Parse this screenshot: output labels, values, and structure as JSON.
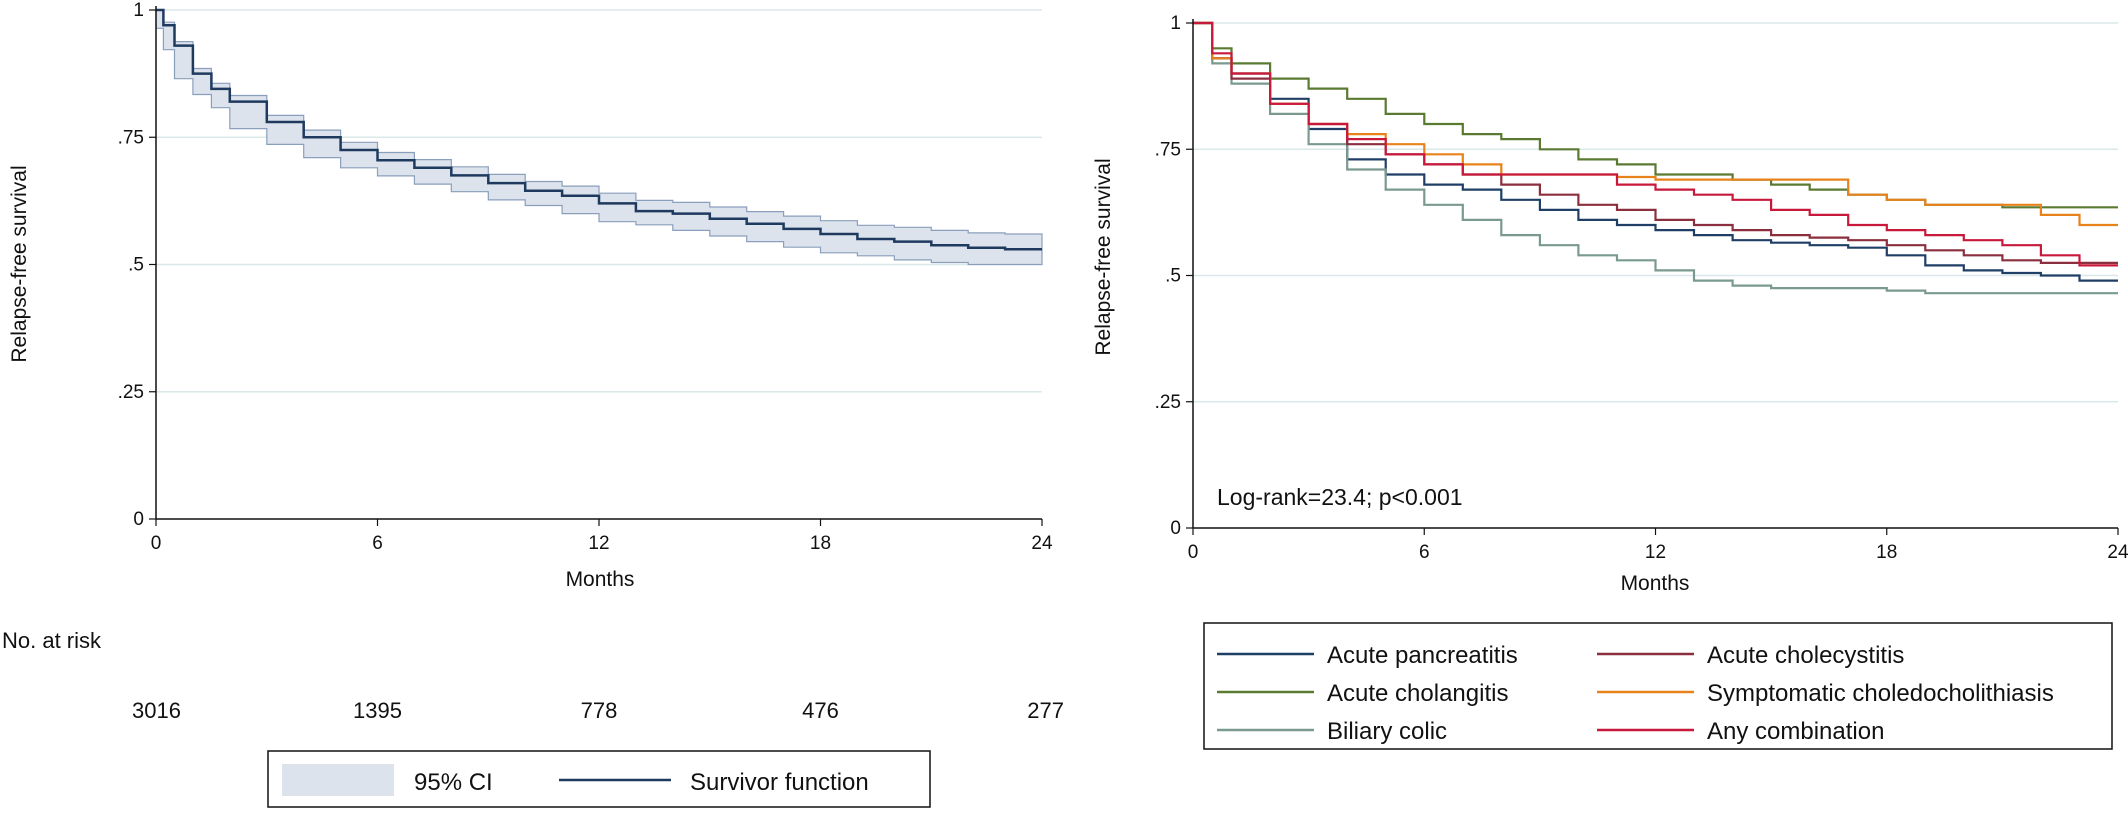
{
  "chart_data": [
    {
      "type": "line",
      "xlabel": "Months",
      "ylabel": "Relapse-free survival",
      "xlim": [
        0,
        24
      ],
      "ylim": [
        0,
        1
      ],
      "xticks": [
        "0",
        "6",
        "12",
        "18",
        "24"
      ],
      "yticks": [
        "0",
        ".25",
        ".5",
        ".75",
        "1"
      ],
      "grid": true,
      "risk_table": {
        "label": "No. at risk",
        "values": [
          "3016",
          "1395",
          "778",
          "476",
          "277"
        ]
      },
      "legend": {
        "placement": "bottom",
        "ci_label": "95% CI",
        "line_label": "Survivor function"
      },
      "series": [
        {
          "name": "Survivor function",
          "color": "#1f3a5f",
          "ci_color": "#dde3ec",
          "x": [
            0,
            0.2,
            0.5,
            1,
            1.5,
            2,
            3,
            4,
            5,
            6,
            7,
            8,
            9,
            10,
            11,
            12,
            13,
            14,
            15,
            16,
            17,
            18,
            19,
            20,
            21,
            22,
            23,
            24
          ],
          "y": [
            1.0,
            0.97,
            0.93,
            0.875,
            0.845,
            0.82,
            0.78,
            0.75,
            0.725,
            0.705,
            0.69,
            0.675,
            0.66,
            0.645,
            0.635,
            0.62,
            0.605,
            0.6,
            0.59,
            0.58,
            0.57,
            0.56,
            0.55,
            0.545,
            0.538,
            0.533,
            0.53,
            0.53
          ],
          "ci_lower": [
            1.0,
            0.964,
            0.922,
            0.865,
            0.834,
            0.808,
            0.767,
            0.736,
            0.71,
            0.69,
            0.674,
            0.658,
            0.643,
            0.627,
            0.616,
            0.6,
            0.584,
            0.578,
            0.567,
            0.556,
            0.545,
            0.534,
            0.523,
            0.517,
            0.509,
            0.504,
            0.5,
            0.5
          ],
          "ci_upper": [
            1.0,
            0.976,
            0.938,
            0.885,
            0.856,
            0.832,
            0.793,
            0.764,
            0.74,
            0.72,
            0.706,
            0.692,
            0.677,
            0.663,
            0.654,
            0.64,
            0.626,
            0.622,
            0.613,
            0.604,
            0.595,
            0.586,
            0.577,
            0.573,
            0.567,
            0.562,
            0.56,
            0.56
          ]
        }
      ]
    },
    {
      "type": "line",
      "xlabel": "Months",
      "ylabel": "Relapse-free survival",
      "xlim": [
        0,
        24
      ],
      "ylim": [
        0,
        1
      ],
      "xticks": [
        "0",
        "6",
        "12",
        "18",
        "24"
      ],
      "yticks": [
        "0",
        ".25",
        ".5",
        ".75",
        "1"
      ],
      "grid": true,
      "annotation": "Log-rank=23.4; p<0.001",
      "legend": {
        "placement": "bottom"
      },
      "series": [
        {
          "name": "Acute pancreatitis",
          "color": "#1f3f66",
          "x": [
            0,
            0.5,
            1,
            2,
            3,
            4,
            5,
            6,
            7,
            8,
            9,
            10,
            11,
            12,
            13,
            14,
            15,
            16,
            17,
            18,
            19,
            20,
            21,
            22,
            23,
            24
          ],
          "y": [
            1.0,
            0.93,
            0.9,
            0.85,
            0.79,
            0.73,
            0.7,
            0.68,
            0.67,
            0.65,
            0.63,
            0.61,
            0.6,
            0.59,
            0.58,
            0.57,
            0.565,
            0.56,
            0.555,
            0.54,
            0.52,
            0.51,
            0.505,
            0.5,
            0.49,
            0.49
          ]
        },
        {
          "name": "Acute cholangitis",
          "color": "#5a7a32",
          "x": [
            0,
            0.5,
            1,
            2,
            3,
            4,
            5,
            6,
            7,
            8,
            9,
            10,
            11,
            12,
            13,
            14,
            15,
            16,
            17,
            18,
            19,
            20,
            21,
            22,
            23,
            24
          ],
          "y": [
            1.0,
            0.95,
            0.92,
            0.89,
            0.87,
            0.85,
            0.82,
            0.8,
            0.78,
            0.77,
            0.75,
            0.73,
            0.72,
            0.7,
            0.7,
            0.69,
            0.68,
            0.67,
            0.66,
            0.65,
            0.64,
            0.64,
            0.635,
            0.635,
            0.635,
            0.635
          ]
        },
        {
          "name": "Biliary colic",
          "color": "#7a998f",
          "x": [
            0,
            0.5,
            1,
            2,
            3,
            4,
            5,
            6,
            7,
            8,
            9,
            10,
            11,
            12,
            13,
            14,
            15,
            16,
            17,
            18,
            19,
            20,
            21,
            22,
            23,
            24
          ],
          "y": [
            1.0,
            0.92,
            0.88,
            0.82,
            0.76,
            0.71,
            0.67,
            0.64,
            0.61,
            0.58,
            0.56,
            0.54,
            0.53,
            0.51,
            0.49,
            0.48,
            0.475,
            0.475,
            0.475,
            0.47,
            0.465,
            0.465,
            0.465,
            0.465,
            0.465,
            0.465
          ]
        },
        {
          "name": "Acute cholecystitis",
          "color": "#8b2e3d",
          "x": [
            0,
            0.5,
            1,
            2,
            3,
            4,
            5,
            6,
            7,
            8,
            9,
            10,
            11,
            12,
            13,
            14,
            15,
            16,
            17,
            18,
            19,
            20,
            21,
            22,
            23,
            24
          ],
          "y": [
            1.0,
            0.93,
            0.89,
            0.84,
            0.8,
            0.76,
            0.74,
            0.72,
            0.7,
            0.68,
            0.66,
            0.64,
            0.63,
            0.61,
            0.6,
            0.59,
            0.58,
            0.575,
            0.57,
            0.56,
            0.55,
            0.54,
            0.53,
            0.525,
            0.525,
            0.525
          ]
        },
        {
          "name": "Symptomatic choledocholithiasis",
          "color": "#e8821a",
          "x": [
            0,
            0.5,
            1,
            2,
            3,
            4,
            5,
            6,
            7,
            8,
            9,
            10,
            11,
            12,
            13,
            14,
            15,
            16,
            17,
            18,
            19,
            20,
            21,
            22,
            23,
            24
          ],
          "y": [
            1.0,
            0.93,
            0.9,
            0.84,
            0.8,
            0.78,
            0.76,
            0.74,
            0.72,
            0.7,
            0.7,
            0.7,
            0.695,
            0.69,
            0.69,
            0.69,
            0.69,
            0.69,
            0.66,
            0.65,
            0.64,
            0.64,
            0.64,
            0.62,
            0.6,
            0.6
          ]
        },
        {
          "name": "Any combination",
          "color": "#c8193c",
          "x": [
            0,
            0.5,
            1,
            2,
            3,
            4,
            5,
            6,
            7,
            8,
            9,
            10,
            11,
            12,
            13,
            14,
            15,
            16,
            17,
            18,
            19,
            20,
            21,
            22,
            23,
            24
          ],
          "y": [
            1.0,
            0.94,
            0.9,
            0.84,
            0.8,
            0.77,
            0.74,
            0.72,
            0.7,
            0.7,
            0.7,
            0.7,
            0.68,
            0.67,
            0.66,
            0.65,
            0.63,
            0.62,
            0.6,
            0.59,
            0.58,
            0.57,
            0.56,
            0.54,
            0.52,
            0.52
          ]
        }
      ]
    }
  ]
}
